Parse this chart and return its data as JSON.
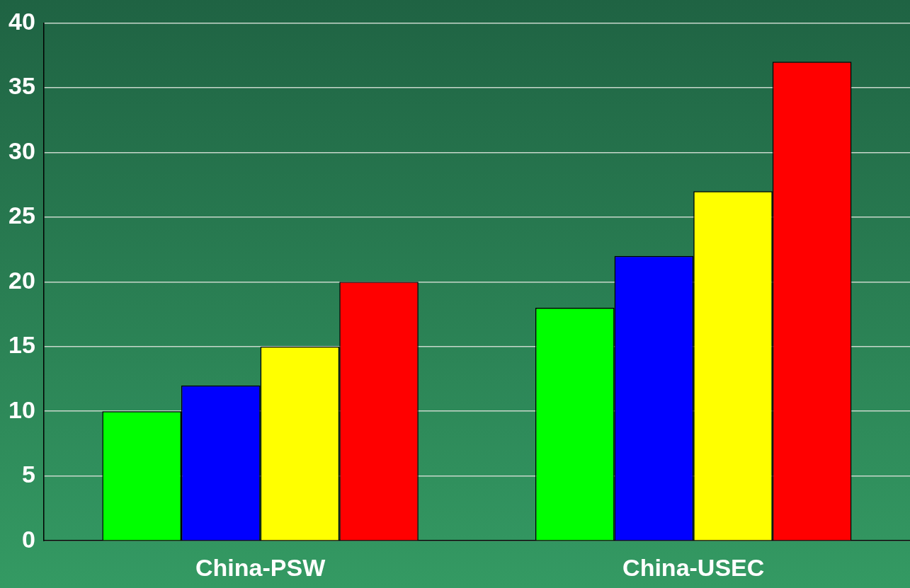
{
  "chart_data": {
    "type": "bar",
    "categories": [
      "China-PSW",
      "China-USEC"
    ],
    "series": [
      {
        "color": "#00ff00",
        "values": [
          10,
          18
        ]
      },
      {
        "color": "#0000ff",
        "values": [
          12,
          22
        ]
      },
      {
        "color": "#ffff00",
        "values": [
          15,
          27
        ]
      },
      {
        "color": "#ff0000",
        "values": [
          20,
          37
        ]
      }
    ],
    "ylim": [
      0,
      40
    ],
    "yticks": [
      0,
      5,
      10,
      15,
      20,
      25,
      30,
      35,
      40
    ],
    "grid": "y",
    "legend": false
  }
}
